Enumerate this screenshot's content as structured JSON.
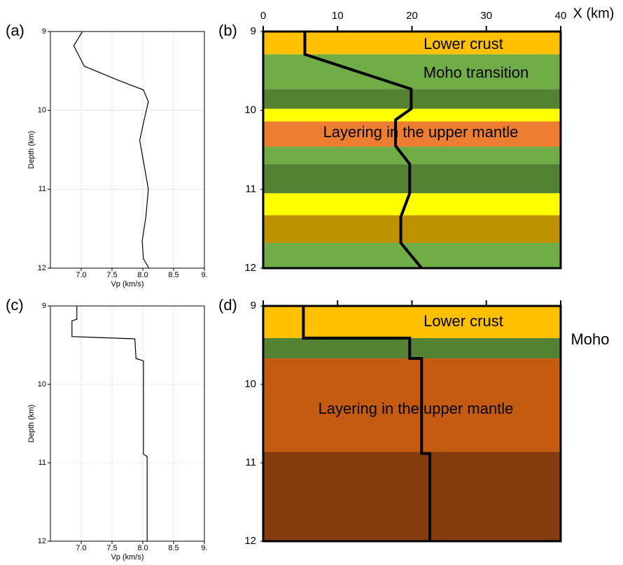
{
  "chart_data": [
    {
      "type": "line",
      "label": "(a)",
      "xlabel": "Vp (km/s)",
      "ylabel": "Depth (km)",
      "xlim": [
        6.5,
        9.0
      ],
      "ylim": [
        9,
        12
      ],
      "y_inverted": true,
      "grid": true,
      "xaxis_position": "bottom",
      "xtick_labels": true,
      "xticks": [
        {
          "value": 7,
          "label": "7.0"
        },
        7.5,
        {
          "value": 8,
          "label": "8.0"
        },
        8.5,
        {
          "value": 9,
          "label": "9."
        }
      ],
      "yticks": [
        9,
        10,
        11,
        12
      ],
      "series": [
        {
          "color": "#000000",
          "x": [
            7.02,
            6.88,
            7.05,
            7.61,
            8.01,
            8.09,
            8.01,
            7.95,
            8.02,
            8.09,
            8.05,
            7.99,
            8.01,
            8.1
          ],
          "y": [
            9.0,
            9.18,
            9.44,
            9.62,
            9.74,
            9.89,
            10.16,
            10.38,
            10.69,
            11.0,
            11.35,
            11.66,
            11.88,
            12.0
          ]
        }
      ]
    },
    {
      "type": "layers",
      "label": "(b)",
      "xlabel": "X (km)",
      "xlim": [
        0,
        40
      ],
      "ylim": [
        9,
        12
      ],
      "y_inverted": true,
      "grid": false,
      "xaxis_position": "top",
      "xtick_labels": true,
      "xticks": [
        0,
        10,
        20,
        30,
        40
      ],
      "yticks": [
        9,
        10,
        11,
        12
      ],
      "layers": [
        {
          "top": 9.0,
          "bottom": 9.29,
          "color": "#ffc000"
        },
        {
          "top": 9.29,
          "bottom": 9.73,
          "color": "#70ad47"
        },
        {
          "top": 9.73,
          "bottom": 9.98,
          "color": "#548235"
        },
        {
          "top": 9.98,
          "bottom": 10.14,
          "color": "#ffff00"
        },
        {
          "top": 10.14,
          "bottom": 10.46,
          "color": "#ed7d31"
        },
        {
          "top": 10.46,
          "bottom": 10.68,
          "color": "#70ad47"
        },
        {
          "top": 10.68,
          "bottom": 11.05,
          "color": "#548235"
        },
        {
          "top": 11.05,
          "bottom": 11.33,
          "color": "#ffff00"
        },
        {
          "top": 11.33,
          "bottom": 11.68,
          "color": "#bf9000"
        },
        {
          "top": 11.68,
          "bottom": 12.0,
          "color": "#70ad47"
        }
      ],
      "series": [
        {
          "color": "#000000",
          "x": [
            5.6,
            5.6,
            19.9,
            19.9,
            17.8,
            17.8,
            19.7,
            19.7,
            18.5,
            18.5,
            21.3
          ],
          "y": [
            9.0,
            9.29,
            9.73,
            9.98,
            10.12,
            10.45,
            10.68,
            11.05,
            11.35,
            11.68,
            12.0
          ]
        }
      ],
      "annotations": [
        "Lower crust",
        "Moho transition",
        "Layering in the upper mantle"
      ]
    },
    {
      "type": "line",
      "label": "(c)",
      "xlabel": "Vp (km/s)",
      "ylabel": "Depth (km)",
      "xlim": [
        6.5,
        9.0
      ],
      "ylim": [
        9,
        12
      ],
      "y_inverted": true,
      "grid": true,
      "xaxis_position": "bottom",
      "xtick_labels": true,
      "xticks": [
        {
          "value": 7,
          "label": "7.0"
        },
        7.5,
        {
          "value": 8,
          "label": "8.0"
        },
        8.5,
        {
          "value": 9,
          "label": "9."
        }
      ],
      "yticks": [
        9,
        10,
        11,
        12
      ],
      "series": [
        {
          "color": "#000000",
          "x": [
            6.93,
            6.93,
            6.85,
            6.85,
            7.87,
            7.89,
            8.01,
            8.01,
            8.07,
            8.07
          ],
          "y": [
            9.0,
            9.17,
            9.19,
            9.39,
            9.42,
            9.67,
            9.7,
            10.89,
            10.92,
            12.0
          ]
        }
      ]
    },
    {
      "type": "layers",
      "label": "(d)",
      "xlim": [
        0,
        40
      ],
      "ylim": [
        9,
        12
      ],
      "y_inverted": true,
      "grid": false,
      "xaxis_position": "top",
      "xtick_labels": false,
      "xticks": [
        0,
        10,
        20,
        30,
        40
      ],
      "yticks": [
        9,
        10,
        11,
        12
      ],
      "layers": [
        {
          "top": 9.0,
          "bottom": 9.41,
          "color": "#ffc000"
        },
        {
          "top": 9.41,
          "bottom": 9.67,
          "color": "#548235"
        },
        {
          "top": 9.67,
          "bottom": 10.86,
          "color": "#c55a11"
        },
        {
          "top": 10.86,
          "bottom": 12.0,
          "color": "#843c0c"
        }
      ],
      "series": [
        {
          "color": "#000000",
          "x": [
            5.4,
            5.4,
            19.7,
            19.7,
            21.3,
            21.3,
            22.4,
            22.4
          ],
          "y": [
            9.0,
            9.41,
            9.41,
            9.67,
            9.67,
            10.88,
            10.88,
            12.0
          ]
        }
      ],
      "annotations": [
        "Lower crust",
        "Layering in the upper mantle",
        "Moho"
      ]
    }
  ]
}
